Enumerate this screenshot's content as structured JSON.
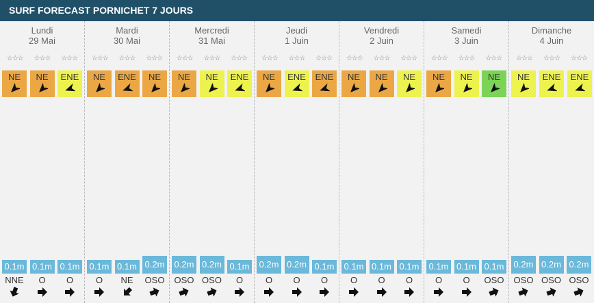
{
  "title": "SURF FORECAST PORNICHET 7 JOURS",
  "colors": {
    "orange": "#eba744",
    "yellow": "#eef24f",
    "green": "#7bd456",
    "wave": "#6ab8da",
    "header": "#1f5068"
  },
  "days": [
    {
      "name": "Lundi",
      "date": "29 Mai",
      "wind": [
        {
          "dir": "NE",
          "level": "orange",
          "angle": 225
        },
        {
          "dir": "NE",
          "level": "orange",
          "angle": 225
        },
        {
          "dir": "ENE",
          "level": "yellow",
          "angle": 250
        }
      ],
      "waves": [
        {
          "h": "0.1m",
          "tall": false
        },
        {
          "h": "0.1m",
          "tall": false
        },
        {
          "h": "0.1m",
          "tall": false
        }
      ],
      "swell": [
        {
          "dir": "NNE",
          "angle": 200
        },
        {
          "dir": "O",
          "angle": 90
        },
        {
          "dir": "O",
          "angle": 90
        }
      ]
    },
    {
      "name": "Mardi",
      "date": "30 Mai",
      "wind": [
        {
          "dir": "NE",
          "level": "orange",
          "angle": 225
        },
        {
          "dir": "ENE",
          "level": "orange",
          "angle": 250
        },
        {
          "dir": "NE",
          "level": "orange",
          "angle": 225
        }
      ],
      "waves": [
        {
          "h": "0.1m",
          "tall": false
        },
        {
          "h": "0.1m",
          "tall": false
        },
        {
          "h": "0.2m",
          "tall": true
        }
      ],
      "swell": [
        {
          "dir": "O",
          "angle": 90
        },
        {
          "dir": "NE",
          "angle": 225
        },
        {
          "dir": "OSO",
          "angle": 70
        }
      ]
    },
    {
      "name": "Mercredi",
      "date": "31 Mai",
      "wind": [
        {
          "dir": "NE",
          "level": "orange",
          "angle": 225
        },
        {
          "dir": "NE",
          "level": "yellow",
          "angle": 225
        },
        {
          "dir": "ENE",
          "level": "yellow",
          "angle": 250
        }
      ],
      "waves": [
        {
          "h": "0.2m",
          "tall": true
        },
        {
          "h": "0.2m",
          "tall": true
        },
        {
          "h": "0.1m",
          "tall": false
        }
      ],
      "swell": [
        {
          "dir": "OSO",
          "angle": 70
        },
        {
          "dir": "OSO",
          "angle": 70
        },
        {
          "dir": "O",
          "angle": 90
        }
      ]
    },
    {
      "name": "Jeudi",
      "date": "1 Juin",
      "wind": [
        {
          "dir": "NE",
          "level": "orange",
          "angle": 225
        },
        {
          "dir": "ENE",
          "level": "yellow",
          "angle": 250
        },
        {
          "dir": "ENE",
          "level": "orange",
          "angle": 250
        }
      ],
      "waves": [
        {
          "h": "0.2m",
          "tall": true
        },
        {
          "h": "0.2m",
          "tall": true
        },
        {
          "h": "0.1m",
          "tall": false
        }
      ],
      "swell": [
        {
          "dir": "O",
          "angle": 90
        },
        {
          "dir": "O",
          "angle": 90
        },
        {
          "dir": "O",
          "angle": 90
        }
      ]
    },
    {
      "name": "Vendredi",
      "date": "2 Juin",
      "wind": [
        {
          "dir": "NE",
          "level": "orange",
          "angle": 225
        },
        {
          "dir": "NE",
          "level": "orange",
          "angle": 225
        },
        {
          "dir": "NE",
          "level": "yellow",
          "angle": 225
        }
      ],
      "waves": [
        {
          "h": "0.1m",
          "tall": false
        },
        {
          "h": "0.1m",
          "tall": false
        },
        {
          "h": "0.1m",
          "tall": false
        }
      ],
      "swell": [
        {
          "dir": "O",
          "angle": 90
        },
        {
          "dir": "O",
          "angle": 90
        },
        {
          "dir": "O",
          "angle": 90
        }
      ]
    },
    {
      "name": "Samedi",
      "date": "3 Juin",
      "wind": [
        {
          "dir": "NE",
          "level": "orange",
          "angle": 225
        },
        {
          "dir": "NE",
          "level": "yellow",
          "angle": 225
        },
        {
          "dir": "NE",
          "level": "green",
          "angle": 225
        }
      ],
      "waves": [
        {
          "h": "0.1m",
          "tall": false
        },
        {
          "h": "0.1m",
          "tall": false
        },
        {
          "h": "0.1m",
          "tall": false
        }
      ],
      "swell": [
        {
          "dir": "O",
          "angle": 90
        },
        {
          "dir": "O",
          "angle": 90
        },
        {
          "dir": "OSO",
          "angle": 70
        }
      ]
    },
    {
      "name": "Dimanche",
      "date": "4 Juin",
      "wind": [
        {
          "dir": "NE",
          "level": "yellow",
          "angle": 225
        },
        {
          "dir": "ENE",
          "level": "yellow",
          "angle": 250
        },
        {
          "dir": "ENE",
          "level": "yellow",
          "angle": 250
        }
      ],
      "waves": [
        {
          "h": "0.2m",
          "tall": true
        },
        {
          "h": "0.2m",
          "tall": true
        },
        {
          "h": "0.2m",
          "tall": true
        }
      ],
      "swell": [
        {
          "dir": "OSO",
          "angle": 70
        },
        {
          "dir": "OSO",
          "angle": 70
        },
        {
          "dir": "OSO",
          "angle": 70
        }
      ]
    }
  ],
  "stars_glyph": "☆☆☆"
}
